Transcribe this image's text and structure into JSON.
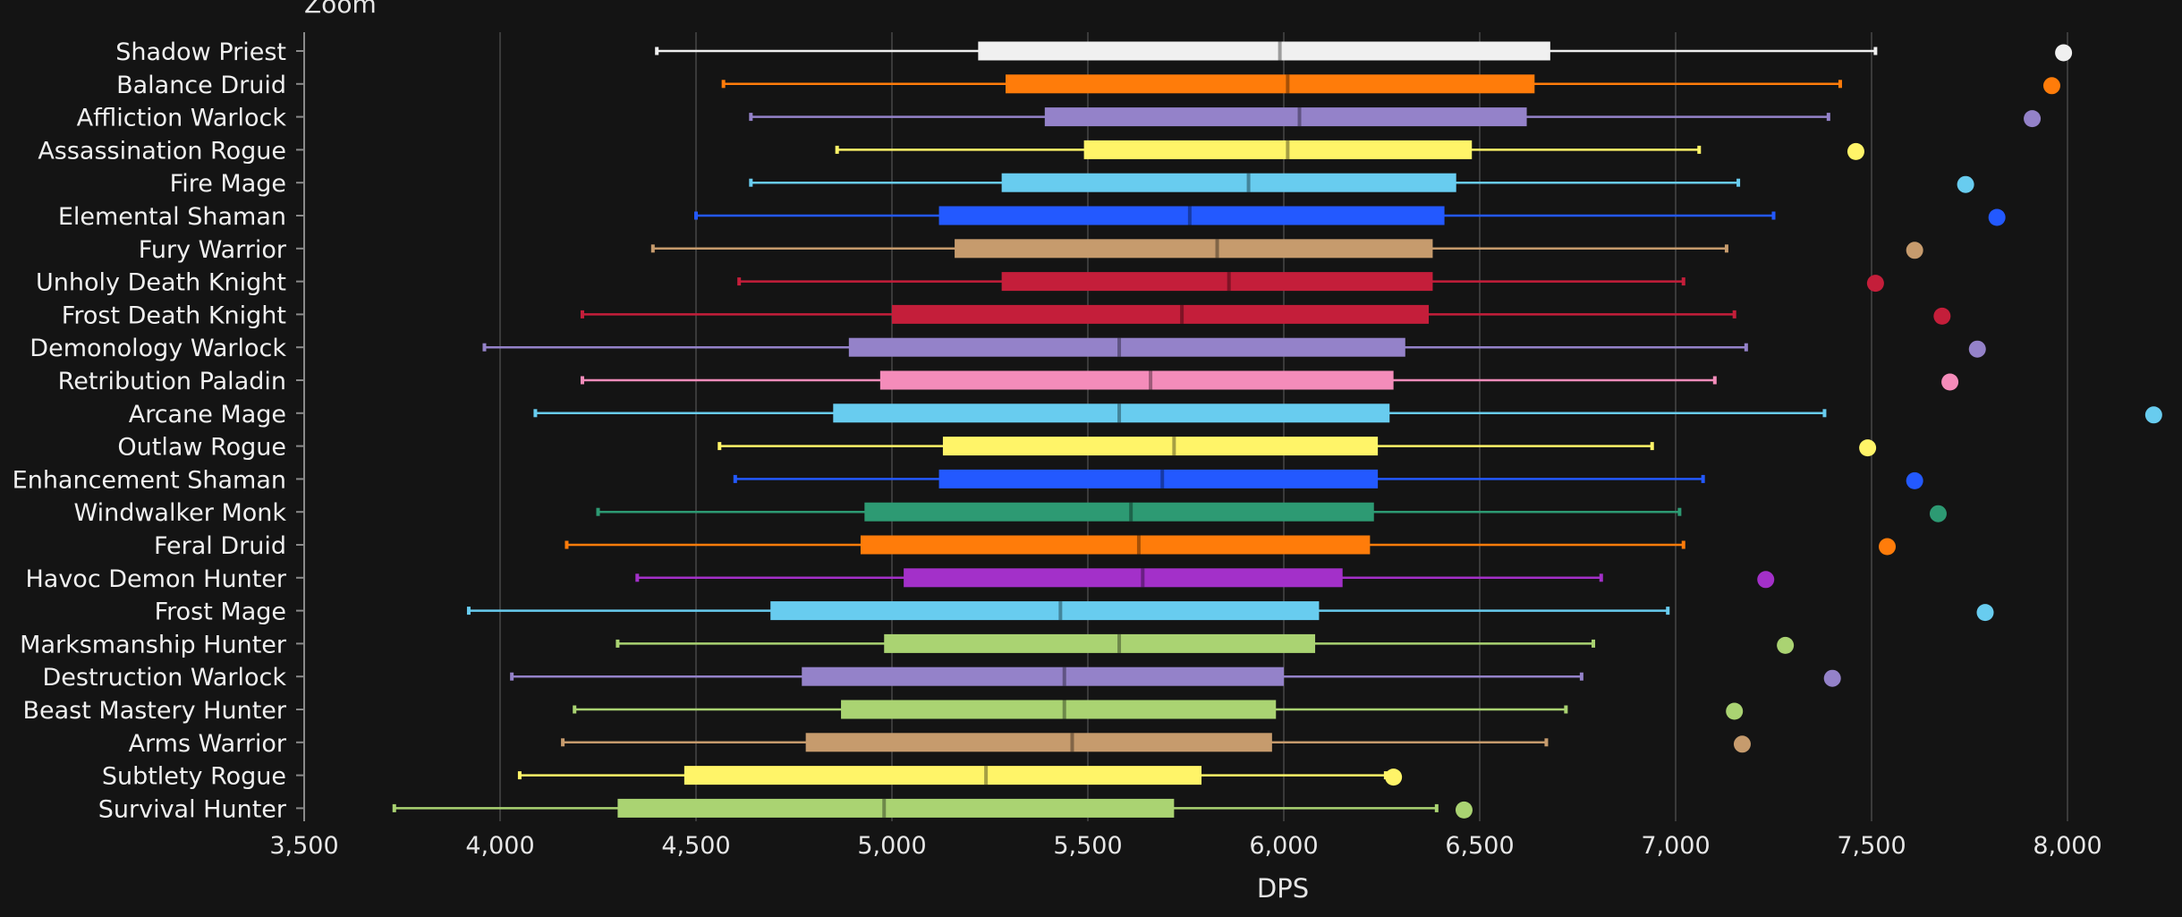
{
  "zoom_label": "Zoom",
  "chart_data": {
    "type": "boxplot",
    "title": "",
    "xlabel": "DPS",
    "ylabel": "",
    "xlim": [
      3500,
      8230
    ],
    "xticks": [
      3500,
      4000,
      4500,
      5000,
      5500,
      6000,
      6500,
      7000,
      7500,
      8000
    ],
    "xtick_labels": [
      "3,500",
      "4,000",
      "4,500",
      "5,000",
      "5,500",
      "6,000",
      "6,500",
      "7,000",
      "7,500",
      "8,000"
    ],
    "grid": true,
    "series": [
      {
        "name": "Shadow Priest",
        "color": "#f0f0f0",
        "min": 4400,
        "q1": 5220,
        "median": 5990,
        "q3": 6680,
        "max": 7510,
        "outlier": 7990
      },
      {
        "name": "Balance Druid",
        "color": "#ff7c0a",
        "min": 4570,
        "q1": 5290,
        "median": 6010,
        "q3": 6640,
        "max": 7420,
        "outlier": 7960
      },
      {
        "name": "Affliction Warlock",
        "color": "#9482c9",
        "min": 4640,
        "q1": 5390,
        "median": 6040,
        "q3": 6620,
        "max": 7390,
        "outlier": 7910
      },
      {
        "name": "Assassination Rogue",
        "color": "#fff468",
        "min": 4860,
        "q1": 5490,
        "median": 6010,
        "q3": 6480,
        "max": 7060,
        "outlier": 7460
      },
      {
        "name": "Fire Mage",
        "color": "#68ccef",
        "min": 4640,
        "q1": 5280,
        "median": 5910,
        "q3": 6440,
        "max": 7160,
        "outlier": 7740
      },
      {
        "name": "Elemental Shaman",
        "color": "#2359ff",
        "min": 4500,
        "q1": 5120,
        "median": 5760,
        "q3": 6410,
        "max": 7250,
        "outlier": 7820
      },
      {
        "name": "Fury Warrior",
        "color": "#c69b6d",
        "min": 4390,
        "q1": 5160,
        "median": 5830,
        "q3": 6380,
        "max": 7130,
        "outlier": 7610
      },
      {
        "name": "Unholy Death Knight",
        "color": "#c41e3a",
        "min": 4610,
        "q1": 5280,
        "median": 5860,
        "q3": 6380,
        "max": 7020,
        "outlier": 7510
      },
      {
        "name": "Frost Death Knight",
        "color": "#c41e3a",
        "min": 4210,
        "q1": 5000,
        "median": 5740,
        "q3": 6370,
        "max": 7150,
        "outlier": 7680
      },
      {
        "name": "Demonology Warlock",
        "color": "#9482c9",
        "min": 3960,
        "q1": 4890,
        "median": 5580,
        "q3": 6310,
        "max": 7180,
        "outlier": 7770
      },
      {
        "name": "Retribution Paladin",
        "color": "#f48cba",
        "min": 4210,
        "q1": 4970,
        "median": 5660,
        "q3": 6280,
        "max": 7100,
        "outlier": 7700
      },
      {
        "name": "Arcane Mage",
        "color": "#68ccef",
        "min": 4090,
        "q1": 4850,
        "median": 5580,
        "q3": 6270,
        "max": 7380,
        "outlier": 8220
      },
      {
        "name": "Outlaw Rogue",
        "color": "#fff468",
        "min": 4560,
        "q1": 5130,
        "median": 5720,
        "q3": 6240,
        "max": 6940,
        "outlier": 7490
      },
      {
        "name": "Enhancement Shaman",
        "color": "#2359ff",
        "min": 4600,
        "q1": 5120,
        "median": 5690,
        "q3": 6240,
        "max": 7070,
        "outlier": 7610
      },
      {
        "name": "Windwalker Monk",
        "color": "#2d9a73",
        "min": 4250,
        "q1": 4930,
        "median": 5610,
        "q3": 6230,
        "max": 7010,
        "outlier": 7670
      },
      {
        "name": "Feral Druid",
        "color": "#ff7c0a",
        "min": 4170,
        "q1": 4920,
        "median": 5630,
        "q3": 6220,
        "max": 7020,
        "outlier": 7540
      },
      {
        "name": "Havoc Demon Hunter",
        "color": "#a330c9",
        "min": 4350,
        "q1": 5030,
        "median": 5640,
        "q3": 6150,
        "max": 6810,
        "outlier": 7230
      },
      {
        "name": "Frost Mage",
        "color": "#68ccef",
        "min": 3920,
        "q1": 4690,
        "median": 5430,
        "q3": 6090,
        "max": 6980,
        "outlier": 7790
      },
      {
        "name": "Marksmanship Hunter",
        "color": "#aad372",
        "min": 4300,
        "q1": 4980,
        "median": 5580,
        "q3": 6080,
        "max": 6790,
        "outlier": 7280
      },
      {
        "name": "Destruction Warlock",
        "color": "#9482c9",
        "min": 4030,
        "q1": 4770,
        "median": 5440,
        "q3": 6000,
        "max": 6760,
        "outlier": 7400
      },
      {
        "name": "Beast Mastery Hunter",
        "color": "#aad372",
        "min": 4190,
        "q1": 4870,
        "median": 5440,
        "q3": 5980,
        "max": 6720,
        "outlier": 7150
      },
      {
        "name": "Arms Warrior",
        "color": "#c69b6d",
        "min": 4160,
        "q1": 4780,
        "median": 5460,
        "q3": 5970,
        "max": 6670,
        "outlier": 7170
      },
      {
        "name": "Subtlety Rogue",
        "color": "#fff468",
        "min": 4050,
        "q1": 4470,
        "median": 5240,
        "q3": 5790,
        "max": 6260,
        "outlier": 6280
      },
      {
        "name": "Survival Hunter",
        "color": "#aad372",
        "min": 3730,
        "q1": 4300,
        "median": 4980,
        "q3": 5720,
        "max": 6390,
        "outlier": 6460
      }
    ]
  }
}
